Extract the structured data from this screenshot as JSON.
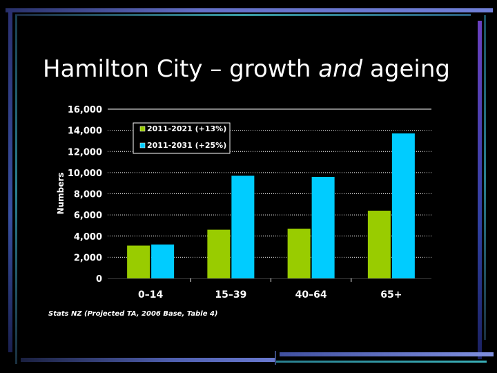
{
  "slide": {
    "title_before": "Hamilton City – growth ",
    "title_emph": "and",
    "title_after": " ageing",
    "source": "Stats NZ (Projected TA, 2006 Base, Table 4)"
  },
  "chart_data": {
    "type": "bar",
    "title": "",
    "xlabel": "",
    "ylabel": "Numbers",
    "categories": [
      "0–14",
      "15–39",
      "40–64",
      "65+"
    ],
    "series": [
      {
        "name": "2011-2021 (+13%)",
        "values": [
          3100,
          4600,
          4700,
          6400
        ]
      },
      {
        "name": "2011-2031 (+25%)",
        "values": [
          3200,
          9700,
          9600,
          13700
        ]
      }
    ],
    "yticks": [
      "16,000",
      "14,000",
      "12,000",
      "10,000",
      "8,000",
      "6,000",
      "4,000",
      "2,000",
      "0"
    ],
    "ylim": [
      0,
      16000
    ],
    "grid": true,
    "legend": "top-left",
    "colors": [
      "#99cc00",
      "#00ccff"
    ]
  }
}
